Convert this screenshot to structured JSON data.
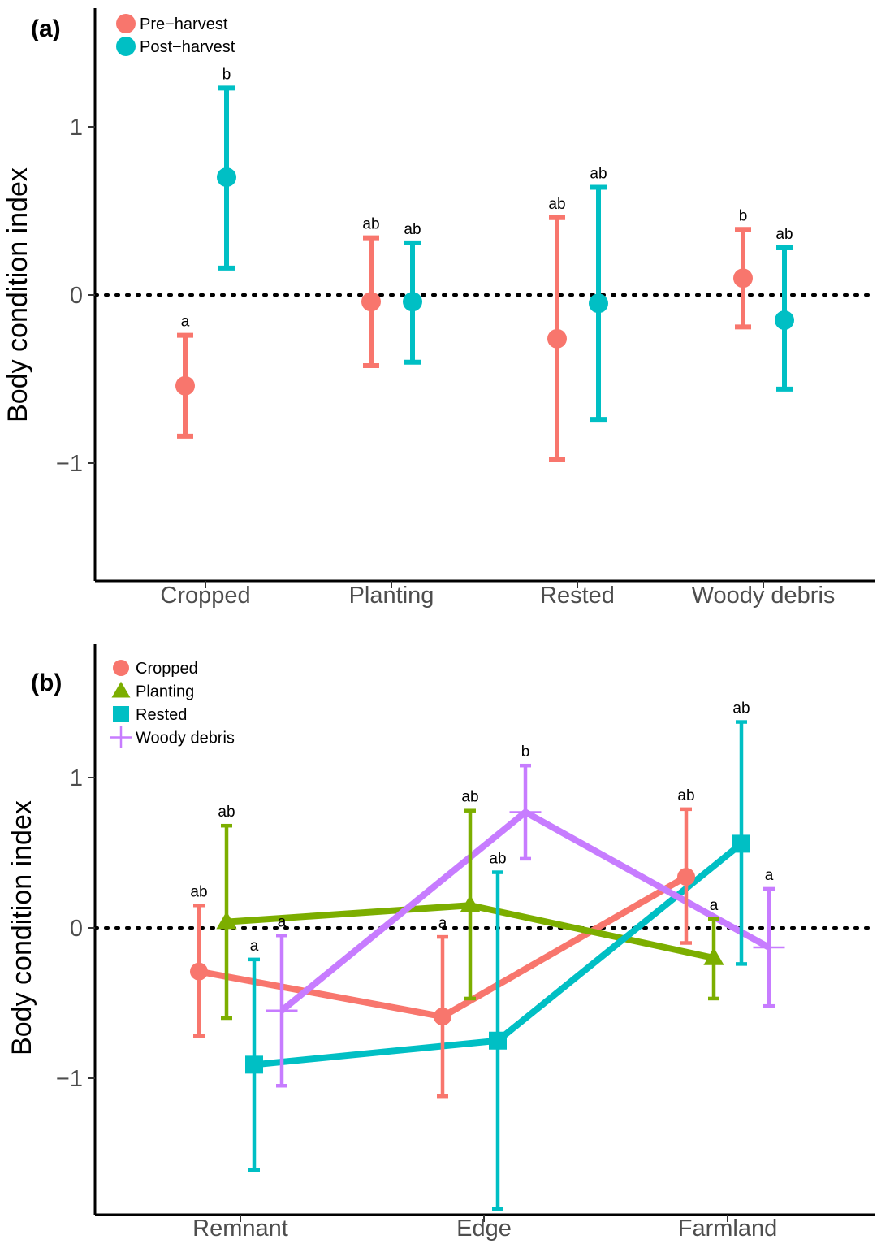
{
  "chart_data": [
    {
      "type": "scatter",
      "panel_label": "(a)",
      "ylabel": "Body condition index",
      "xlabel": "",
      "ylim": [
        -1.7,
        1.7
      ],
      "yticks": [
        {
          "value": -1,
          "label": "−1"
        },
        {
          "value": 0,
          "label": "0"
        },
        {
          "value": 1,
          "label": "1"
        }
      ],
      "reference_line": 0,
      "categories": [
        "Cropped",
        "Planting",
        "Rested",
        "Woody debris"
      ],
      "legend": "top-left",
      "series": [
        {
          "name": "Pre−harvest",
          "color": "#F8766D",
          "values": [
            -0.54,
            -0.04,
            -0.26,
            0.1
          ],
          "lower": [
            -0.84,
            -0.42,
            -0.98,
            -0.19
          ],
          "upper": [
            -0.24,
            0.34,
            0.46,
            0.39
          ],
          "labels": [
            "a",
            "ab",
            "ab",
            "b"
          ]
        },
        {
          "name": "Post−harvest",
          "color": "#00BFC4",
          "values": [
            0.7,
            -0.04,
            -0.05,
            -0.15
          ],
          "lower": [
            0.16,
            -0.4,
            -0.74,
            -0.56
          ],
          "upper": [
            1.23,
            0.31,
            0.64,
            0.28
          ],
          "labels": [
            "b",
            "ab",
            "ab",
            "ab"
          ]
        }
      ]
    },
    {
      "type": "line",
      "panel_label": "(b)",
      "ylabel": "Body condition index",
      "xlabel": "",
      "ylim": [
        -1.9,
        1.9
      ],
      "yticks": [
        {
          "value": -1,
          "label": "−1"
        },
        {
          "value": 0,
          "label": "0"
        },
        {
          "value": 1,
          "label": "1"
        }
      ],
      "reference_line": 0,
      "categories": [
        "Remnant",
        "Edge",
        "Farmland"
      ],
      "legend": "top-left",
      "series": [
        {
          "name": "Cropped",
          "color": "#F8766D",
          "marker": "circle",
          "values": [
            -0.29,
            -0.59,
            0.34
          ],
          "lower": [
            -0.72,
            -1.12,
            -0.1
          ],
          "upper": [
            0.15,
            -0.06,
            0.79
          ],
          "labels": [
            "ab",
            "a",
            "ab"
          ]
        },
        {
          "name": "Planting",
          "color": "#7CAE00",
          "marker": "triangle",
          "values": [
            0.04,
            0.15,
            -0.2
          ],
          "lower": [
            -0.6,
            -0.47,
            -0.47
          ],
          "upper": [
            0.68,
            0.78,
            0.06
          ],
          "labels": [
            "ab",
            "ab",
            "a"
          ]
        },
        {
          "name": "Rested",
          "color": "#00BFC4",
          "marker": "square",
          "values": [
            -0.91,
            -0.75,
            0.56
          ],
          "lower": [
            -1.61,
            -1.87,
            -0.24
          ],
          "upper": [
            -0.21,
            0.37,
            1.37
          ],
          "labels": [
            "a",
            "ab",
            "ab"
          ]
        },
        {
          "name": "Woody debris",
          "color": "#C77CFF",
          "marker": "cross",
          "values": [
            -0.55,
            0.77,
            -0.13
          ],
          "lower": [
            -1.05,
            0.46,
            -0.52
          ],
          "upper": [
            -0.05,
            1.08,
            0.26
          ],
          "labels": [
            "a",
            "b",
            "a"
          ]
        }
      ]
    }
  ]
}
